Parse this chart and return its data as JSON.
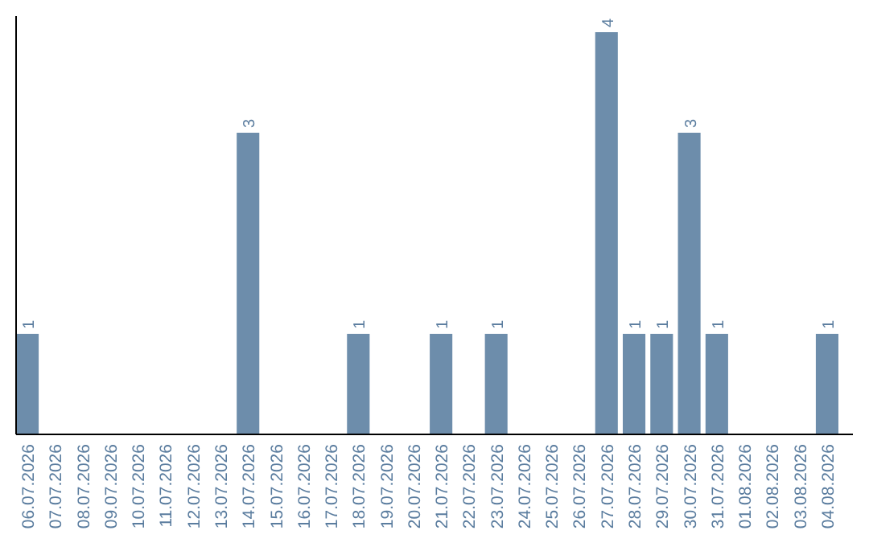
{
  "chart_data": {
    "type": "bar",
    "categories": [
      "06.07.2026",
      "07.07.2026",
      "08.07.2026",
      "09.07.2026",
      "10.07.2026",
      "11.07.2026",
      "12.07.2026",
      "13.07.2026",
      "14.07.2026",
      "15.07.2026",
      "16.07.2026",
      "17.07.2026",
      "18.07.2026",
      "19.07.2026",
      "20.07.2026",
      "21.07.2026",
      "22.07.2026",
      "23.07.2026",
      "24.07.2026",
      "25.07.2026",
      "26.07.2026",
      "27.07.2026",
      "28.07.2026",
      "29.07.2026",
      "30.07.2026",
      "31.07.2026",
      "01.08.2026",
      "02.08.2026",
      "03.08.2026",
      "04.08.2026"
    ],
    "values": [
      1,
      0,
      0,
      0,
      0,
      0,
      0,
      0,
      3,
      0,
      0,
      0,
      1,
      0,
      0,
      1,
      0,
      1,
      0,
      0,
      0,
      4,
      1,
      1,
      3,
      1,
      0,
      0,
      0,
      1
    ],
    "value_labels": [
      "1",
      null,
      null,
      null,
      null,
      null,
      null,
      null,
      "3",
      null,
      null,
      null,
      "1",
      null,
      null,
      "1",
      null,
      "1",
      null,
      null,
      null,
      "4",
      "1",
      "1",
      "3",
      "1",
      null,
      null,
      null,
      "1"
    ],
    "color": "#6d8dab",
    "tick_labels": "x"
  }
}
